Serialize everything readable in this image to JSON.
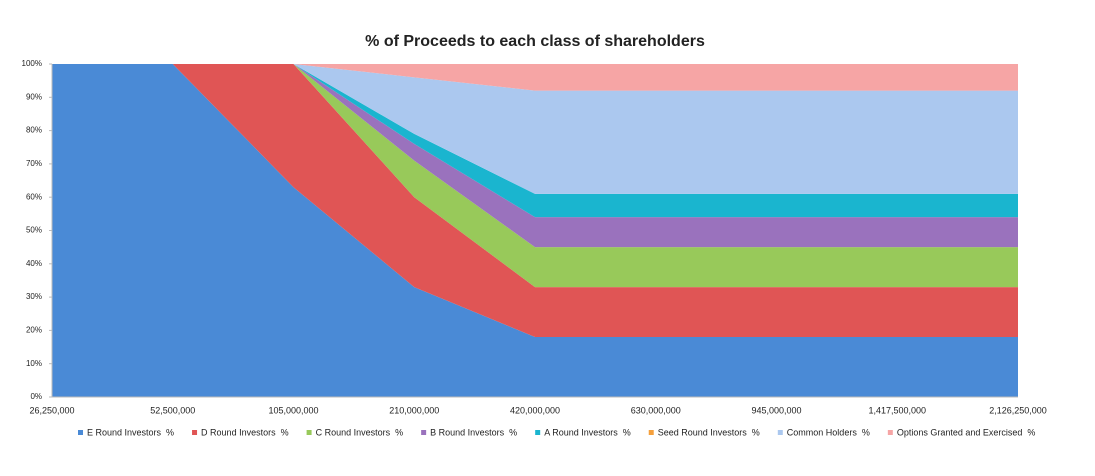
{
  "chart_data": {
    "type": "stacked_area",
    "title": "% of Proceeds to each class of shareholders",
    "categories": [
      "26,250,000",
      "52,500,000",
      "105,000,000",
      "210,000,000",
      "420,000,000",
      "630,000,000",
      "945,000,000",
      "1,417,500,000",
      "2,126,250,000"
    ],
    "series": [
      {
        "name": "E Round Investors  %",
        "color": "#4a8ad6",
        "values": [
          100,
          100,
          63,
          33,
          18,
          18,
          18,
          18,
          18
        ]
      },
      {
        "name": "D Round Investors  %",
        "color": "#e05555",
        "values": [
          0,
          0,
          37,
          27,
          15,
          15,
          15,
          15,
          15
        ]
      },
      {
        "name": "C Round Investors  %",
        "color": "#98c95a",
        "values": [
          0,
          0,
          0,
          11,
          12,
          12,
          12,
          12,
          12
        ]
      },
      {
        "name": "B Round Investors  %",
        "color": "#9a72bd",
        "values": [
          0,
          0,
          0,
          5,
          9,
          9,
          9,
          9,
          9
        ]
      },
      {
        "name": "A Round Investors  %",
        "color": "#1ab5cf",
        "values": [
          0,
          0,
          0,
          3,
          7,
          7,
          7,
          7,
          7
        ]
      },
      {
        "name": "Seed Round Investors  %",
        "color": "#f5a03c",
        "values": [
          0,
          0,
          0,
          0,
          0,
          0,
          0,
          0,
          0
        ]
      },
      {
        "name": "Common Holders  %",
        "color": "#abc8ef",
        "values": [
          0,
          0,
          0,
          17,
          31,
          31,
          31,
          31,
          31
        ]
      },
      {
        "name": "Options Granted and Exercised  %",
        "color": "#f6a5a5",
        "values": [
          0,
          0,
          0,
          4,
          8,
          8,
          8,
          8,
          8
        ]
      }
    ],
    "ylim": [
      0,
      100
    ],
    "yticks": [
      {
        "value": 0,
        "label": "0%"
      },
      {
        "value": 10,
        "label": "10%"
      },
      {
        "value": 20,
        "label": "20%"
      },
      {
        "value": 30,
        "label": "30%"
      },
      {
        "value": 40,
        "label": "40%"
      },
      {
        "value": 50,
        "label": "50%"
      },
      {
        "value": 60,
        "label": "60%"
      },
      {
        "value": 70,
        "label": "70%"
      },
      {
        "value": 80,
        "label": "80%"
      },
      {
        "value": 90,
        "label": "90%"
      },
      {
        "value": 100,
        "label": "100%"
      }
    ],
    "legend": "bottom"
  }
}
